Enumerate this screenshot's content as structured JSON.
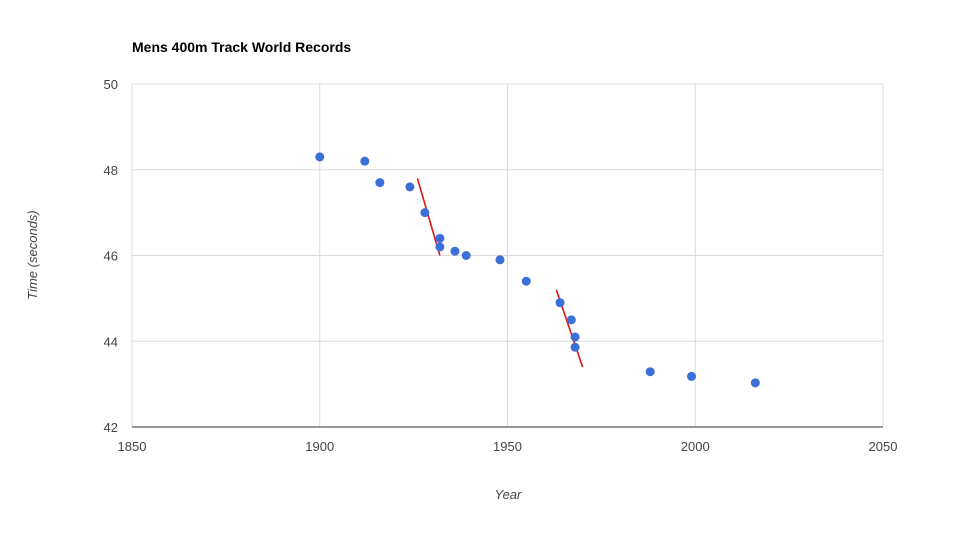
{
  "chart_data": {
    "type": "scatter",
    "title": "Mens 400m Track World Records",
    "xlabel": "Year",
    "ylabel": "Time (seconds)",
    "xlim": [
      1850,
      2050
    ],
    "ylim": [
      42,
      50
    ],
    "x_ticks": [
      1850,
      1900,
      1950,
      2000,
      2050
    ],
    "y_ticks": [
      42,
      44,
      46,
      48,
      50
    ],
    "grid": true,
    "legend": "none",
    "colors": {
      "points": "#3c6fd8",
      "trend_lines": "#e0140f",
      "grid": "#dcdcdc"
    },
    "series": [
      {
        "points": [
          {
            "x": 1900,
            "y": 48.3
          },
          {
            "x": 1912,
            "y": 48.2
          },
          {
            "x": 1916,
            "y": 47.7
          },
          {
            "x": 1924,
            "y": 47.6
          },
          {
            "x": 1928,
            "y": 47.0
          },
          {
            "x": 1932,
            "y": 46.4
          },
          {
            "x": 1932,
            "y": 46.2
          },
          {
            "x": 1936,
            "y": 46.1
          },
          {
            "x": 1939,
            "y": 46.0
          },
          {
            "x": 1948,
            "y": 45.9
          },
          {
            "x": 1955,
            "y": 45.4
          },
          {
            "x": 1964,
            "y": 44.9
          },
          {
            "x": 1967,
            "y": 44.5
          },
          {
            "x": 1968,
            "y": 44.1
          },
          {
            "x": 1968,
            "y": 43.86
          },
          {
            "x": 1988,
            "y": 43.29
          },
          {
            "x": 1999,
            "y": 43.18
          },
          {
            "x": 2016,
            "y": 43.03
          }
        ]
      }
    ],
    "annotations": [
      {
        "type": "line",
        "from": {
          "x": 1926,
          "y": 47.8
        },
        "to": {
          "x": 1932,
          "y": 46.0
        }
      },
      {
        "type": "line",
        "from": {
          "x": 1963,
          "y": 45.2
        },
        "to": {
          "x": 1970,
          "y": 43.4
        }
      }
    ]
  }
}
